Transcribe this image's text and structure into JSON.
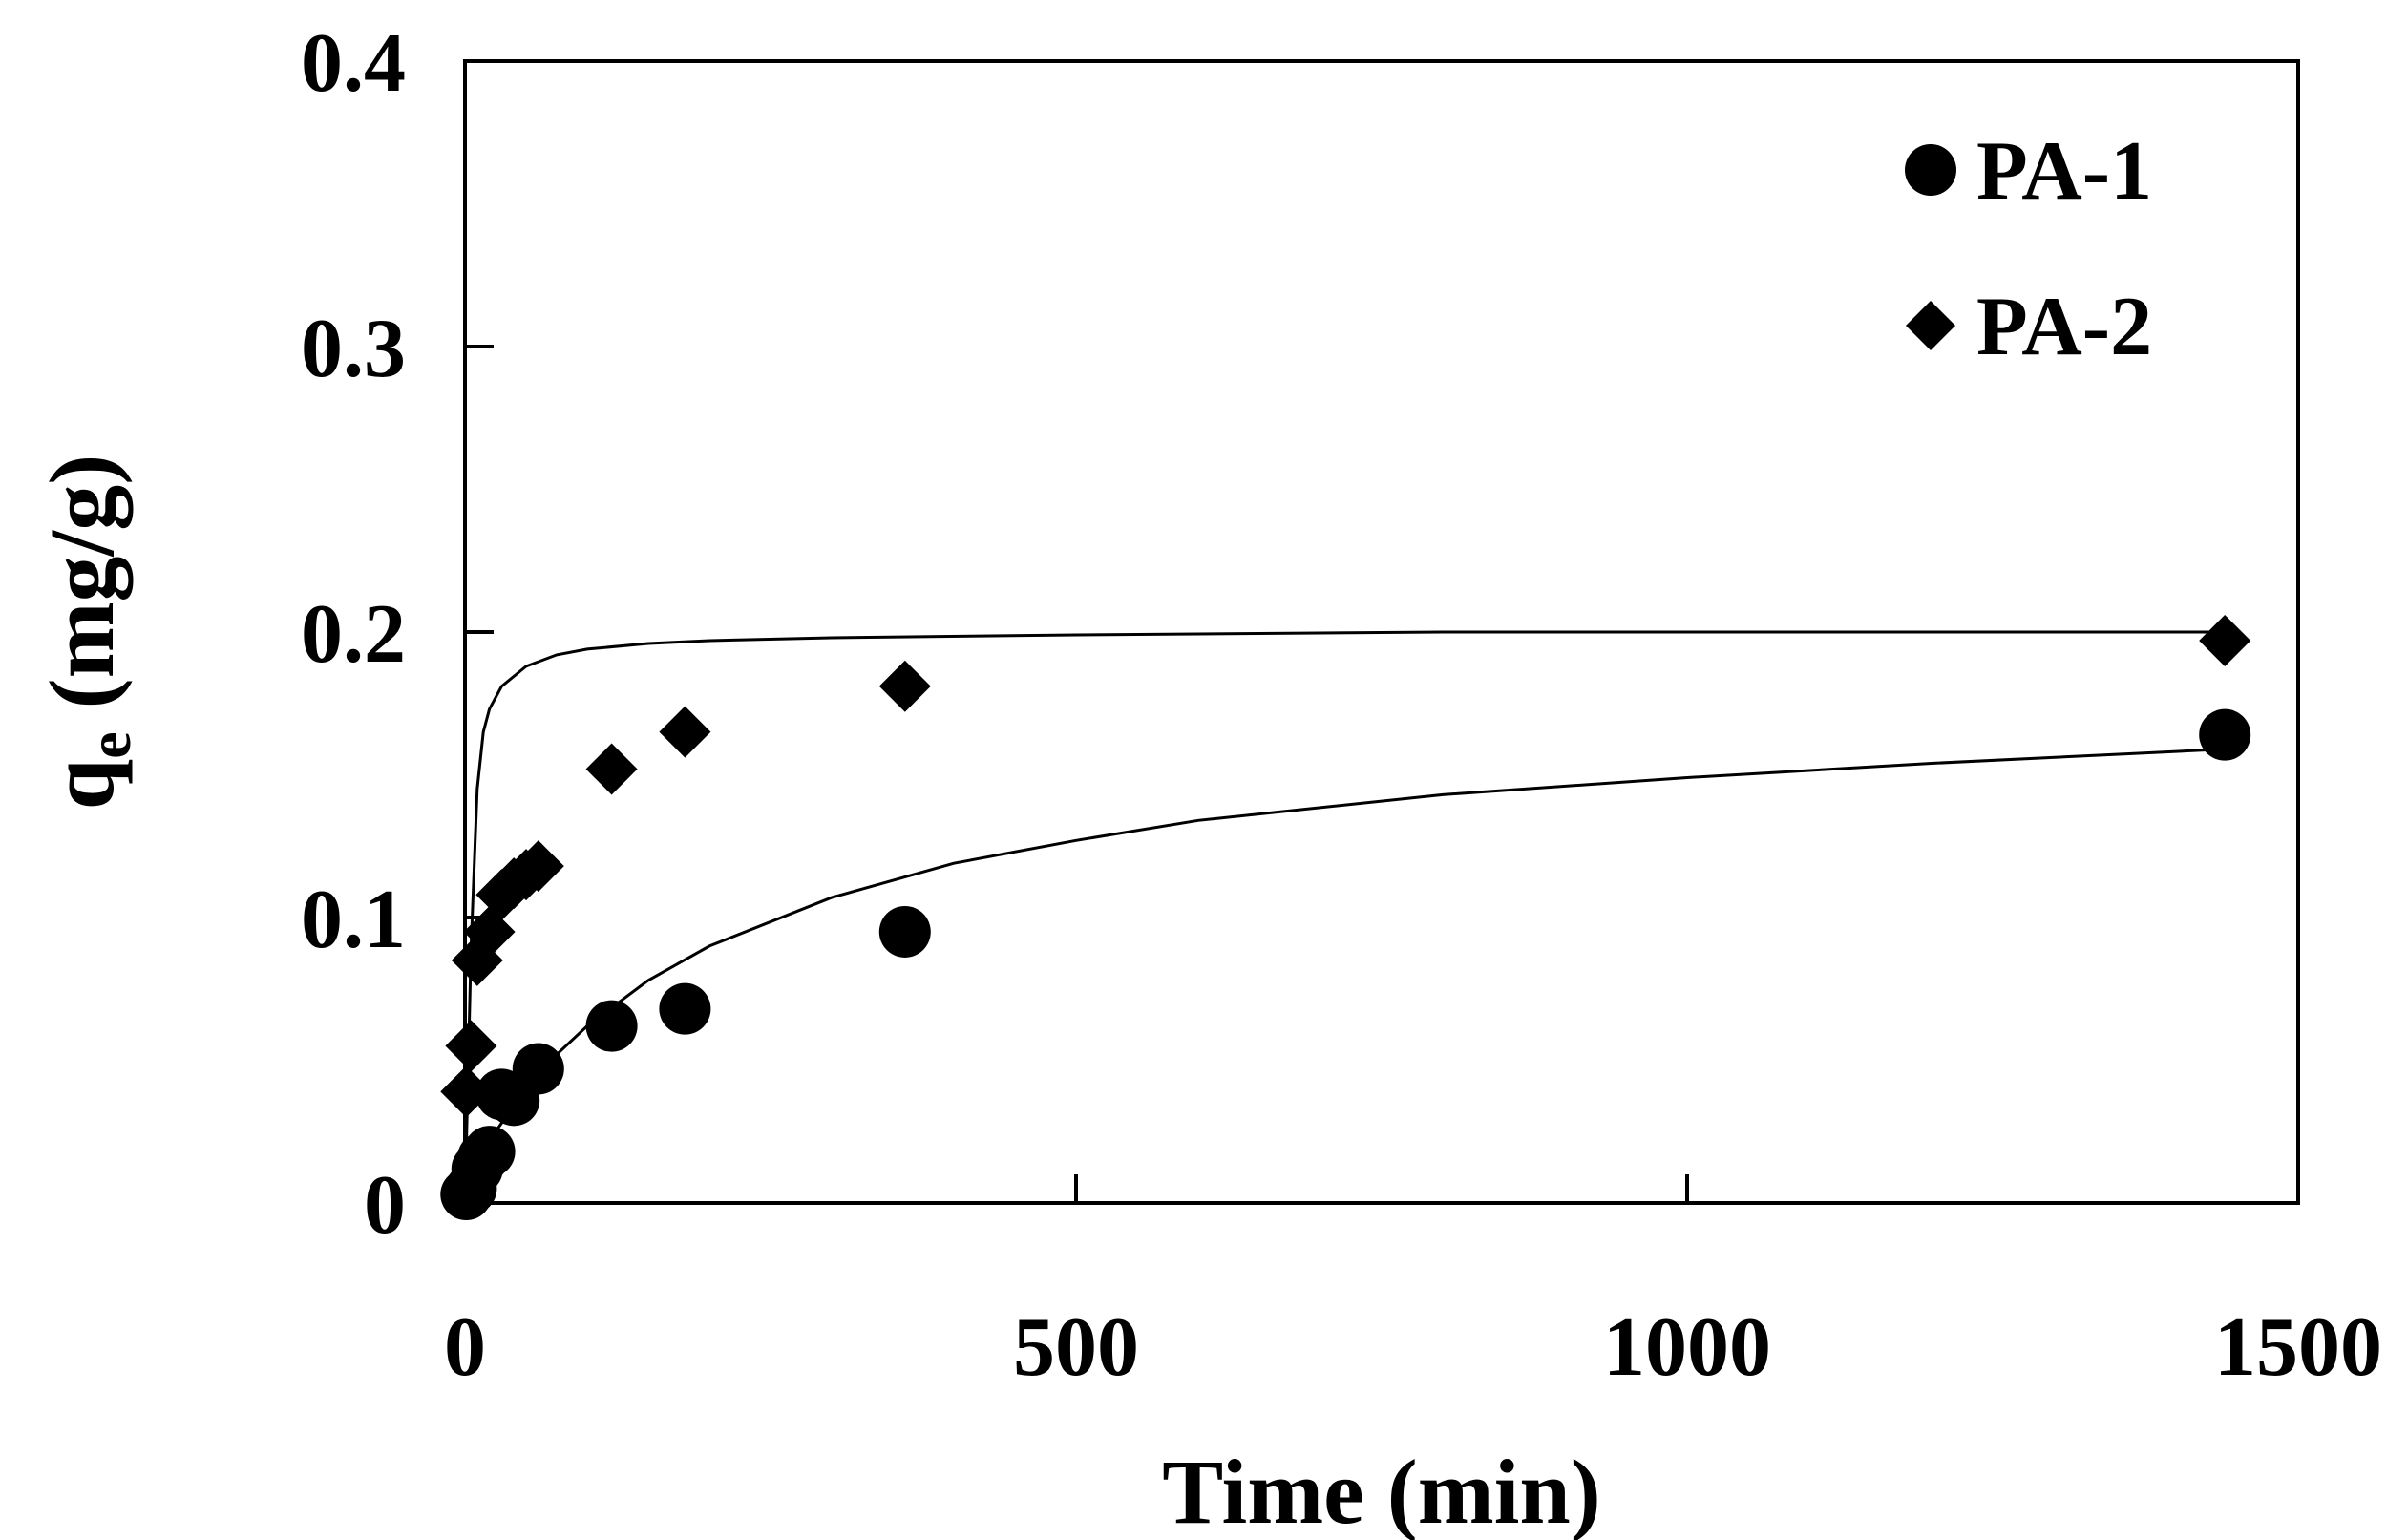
{
  "chart_data": {
    "type": "scatter",
    "title": "",
    "xlabel": "Time (min)",
    "ylabel_main": "q",
    "ylabel_sub": "e",
    "ylabel_units": " (mg/g)",
    "xlim": [
      0,
      1500
    ],
    "ylim": [
      0,
      0.4
    ],
    "xticks": [
      0,
      500,
      1000,
      1500
    ],
    "xtick_labels": [
      "0",
      "500",
      "1000",
      "1500"
    ],
    "yticks": [
      0,
      0.1,
      0.2,
      0.3,
      0.4
    ],
    "ytick_labels": [
      "0",
      "0.1",
      "0.2",
      "0.3",
      "0.4"
    ],
    "grid": false,
    "legend_position": "top-right",
    "series": [
      {
        "name": "PA-1",
        "marker": "circle",
        "color": "#000000",
        "x": [
          1,
          5,
          10,
          15,
          20,
          30,
          40,
          60,
          120,
          180,
          360,
          1440
        ],
        "y": [
          0.003,
          0.005,
          0.012,
          0.016,
          0.018,
          0.038,
          0.036,
          0.047,
          0.062,
          0.068,
          0.095,
          0.164
        ],
        "fit_x": [
          0,
          10,
          25,
          50,
          75,
          100,
          150,
          200,
          300,
          400,
          500,
          600,
          800,
          1000,
          1200,
          1440
        ],
        "fit_y": [
          0,
          0.01,
          0.025,
          0.04,
          0.052,
          0.062,
          0.078,
          0.09,
          0.107,
          0.119,
          0.127,
          0.134,
          0.143,
          0.149,
          0.154,
          0.159
        ]
      },
      {
        "name": "PA-2",
        "marker": "diamond",
        "color": "#000000",
        "x": [
          1,
          5,
          10,
          20,
          30,
          40,
          50,
          60,
          120,
          180,
          360,
          1440
        ],
        "y": [
          0.039,
          0.055,
          0.085,
          0.095,
          0.108,
          0.112,
          0.115,
          0.118,
          0.152,
          0.165,
          0.181,
          0.197
        ],
        "fit_x": [
          0,
          5,
          10,
          15,
          20,
          30,
          50,
          75,
          100,
          150,
          200,
          300,
          500,
          800,
          1000,
          1440
        ],
        "fit_y": [
          0,
          0.09,
          0.145,
          0.165,
          0.173,
          0.181,
          0.188,
          0.192,
          0.194,
          0.196,
          0.197,
          0.198,
          0.199,
          0.2,
          0.2,
          0.2
        ]
      }
    ]
  }
}
